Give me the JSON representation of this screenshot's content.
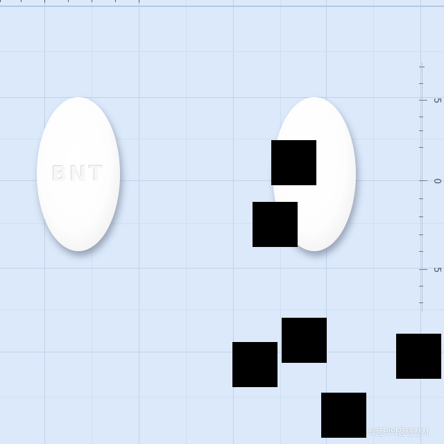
{
  "image": {
    "description_free_content": true
  },
  "pills": [
    {
      "imprint": "BNT"
    },
    {
      "imprint": ""
    }
  ],
  "scale": {
    "labels": [
      "5",
      "0",
      "5"
    ]
  },
  "watermark": {
    "text": "식품의약품안전처"
  },
  "colors": {
    "background": "#dbe9fb",
    "grid": "#bfd2ea",
    "pill": "#ffffff",
    "redaction": "#000000"
  }
}
